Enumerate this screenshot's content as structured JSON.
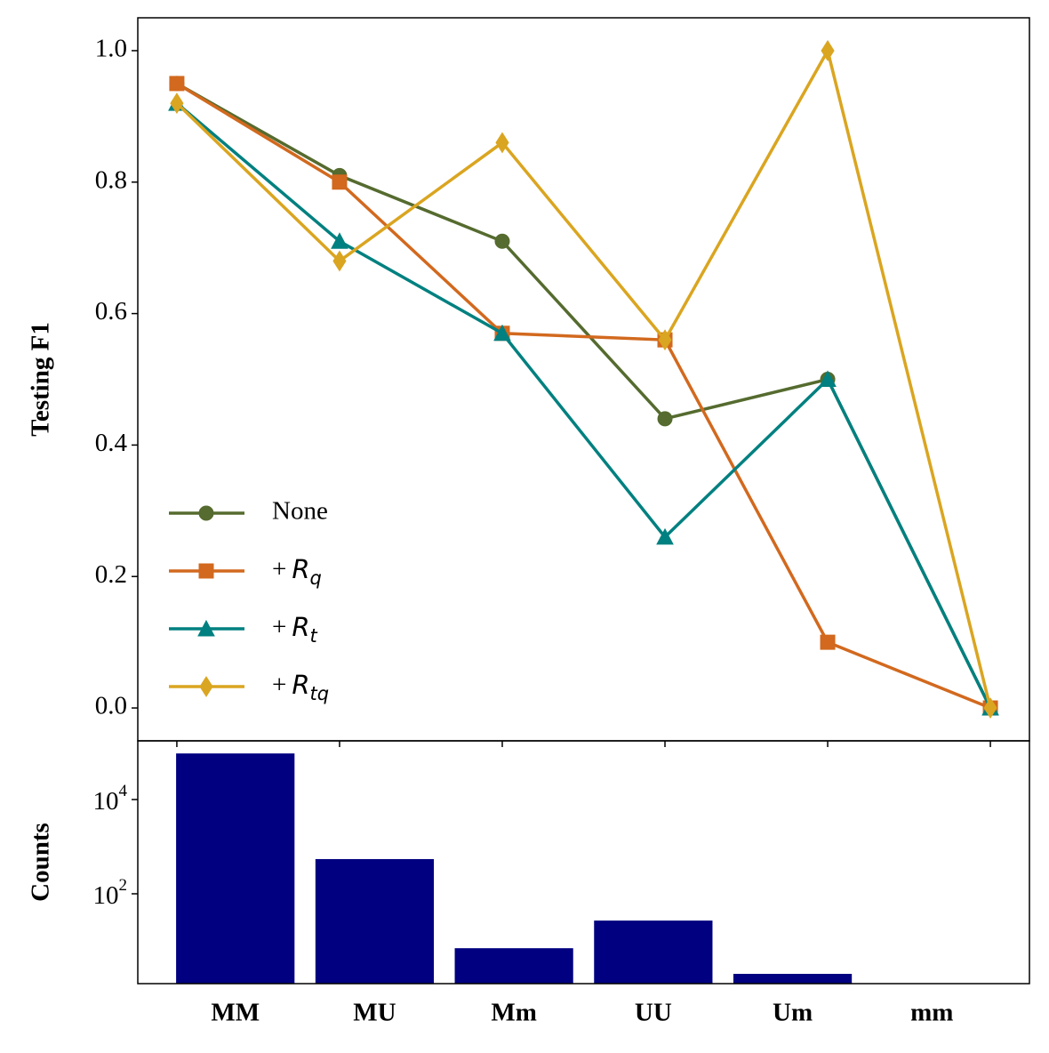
{
  "chart_data": [
    {
      "type": "line",
      "y_label": "Testing F1",
      "x": [
        0,
        1,
        2,
        3,
        4,
        5
      ],
      "xlim": [
        -0.24,
        5.24
      ],
      "ylim": [
        -0.05,
        1.05
      ],
      "yticks": [
        {
          "value": 0,
          "label": "0.0"
        },
        0.2,
        0.4,
        0.6,
        0.8,
        {
          "value": 1,
          "label": "1.0"
        }
      ],
      "legend": "lower left",
      "series": [
        {
          "name": "None",
          "color": "#556b2f",
          "marker": "circle",
          "values": [
            0.95,
            0.81,
            0.71,
            0.44,
            0.5,
            0.0
          ]
        },
        {
          "name": "+R_q",
          "color": "#d2691e",
          "marker": "square",
          "values": [
            0.95,
            0.8,
            0.57,
            0.56,
            0.1,
            0.0
          ]
        },
        {
          "name": "+R_t",
          "color": "#008080",
          "marker": "triangle",
          "values": [
            0.92,
            0.71,
            0.57,
            0.26,
            0.5,
            0.0
          ]
        },
        {
          "name": "+R_tq",
          "color": "#daa520",
          "marker": "diamond",
          "values": [
            0.92,
            0.68,
            0.86,
            0.56,
            1.0,
            0.0
          ]
        }
      ]
    },
    {
      "type": "bar",
      "y_label": "Counts",
      "log_scale": true,
      "categories": [
        "MM",
        "MU",
        "Mm",
        "UU",
        "Um",
        "mm"
      ],
      "values": [
        95000,
        545,
        7,
        27,
        2,
        1
      ],
      "color": "#000080",
      "xlim": [
        -0.7,
        5.7
      ],
      "ylim": [
        1.24,
        176000
      ],
      "yticks": [
        {
          "value": 100,
          "label": "10^2"
        },
        {
          "value": 10000,
          "label": "10^4"
        }
      ]
    }
  ]
}
